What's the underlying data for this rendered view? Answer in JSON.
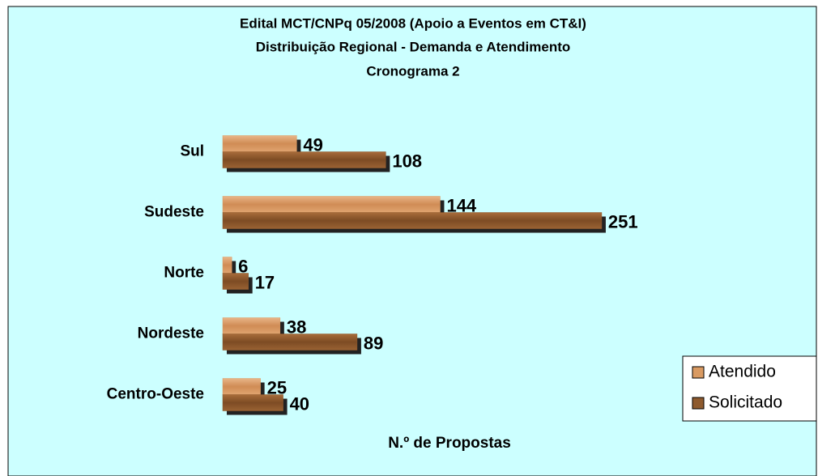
{
  "chart_data": {
    "type": "bar",
    "orientation": "horizontal",
    "title": "Edital MCT/CNPq 05/2008 (Apoio a Eventos em CT&I)",
    "subtitle": [
      "Distribuição Regional - Demanda e Atendimento",
      "Cronograma 2"
    ],
    "x_label": "N.º de Propostas",
    "categories": [
      "Sul",
      "Sudeste",
      "Norte",
      "Nordeste",
      "Centro-Oeste"
    ],
    "series": [
      {
        "name": "Atendido",
        "color": "#d99a62",
        "values": [
          49,
          144,
          6,
          38,
          25
        ]
      },
      {
        "name": "Solicitado",
        "color": "#8e5a2e",
        "values": [
          108,
          251,
          17,
          89,
          40
        ]
      }
    ],
    "xlim": [
      0,
      280
    ],
    "legend": "right"
  }
}
